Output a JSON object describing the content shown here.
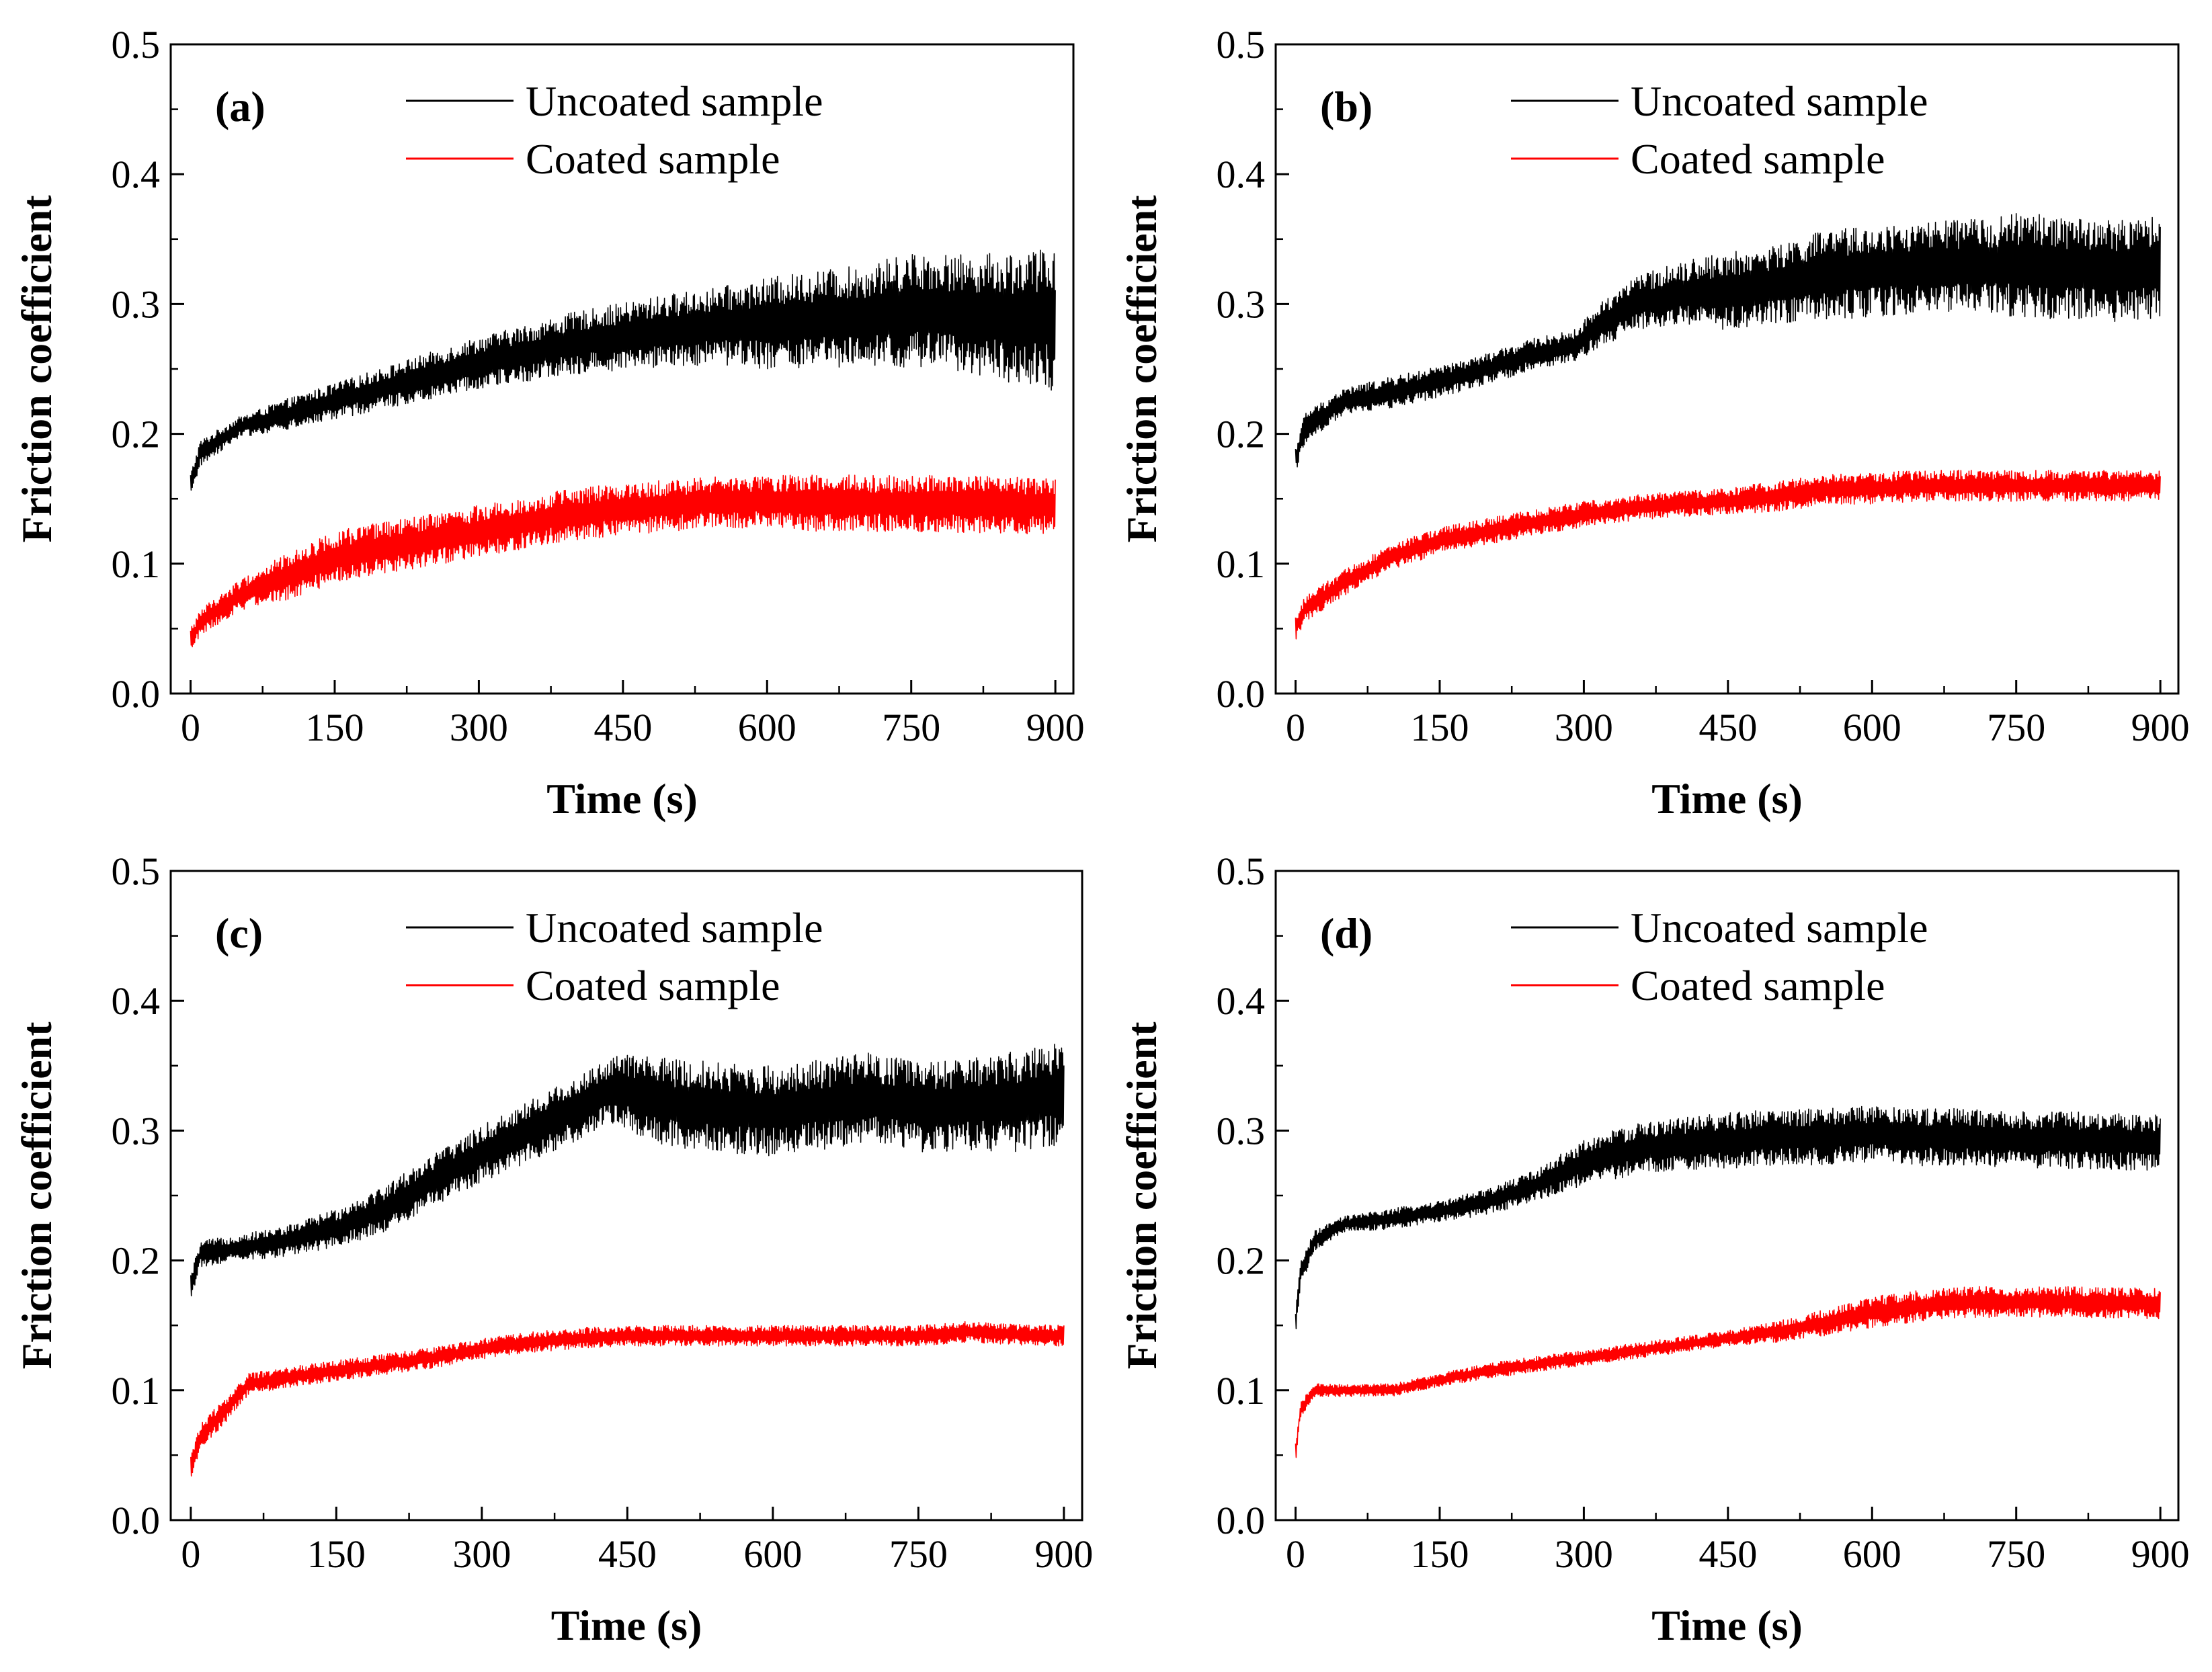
{
  "colors": {
    "uncoated": "#000000",
    "coated": "#ff0000",
    "frame": "#000000"
  },
  "chart_data": [
    {
      "panel": "(a)",
      "type": "line",
      "xlabel": "Time (s)",
      "ylabel": "Friction coefficient",
      "xlim": [
        0,
        900
      ],
      "ylim": [
        0.0,
        0.5
      ],
      "xticks": [
        "0",
        "150",
        "300",
        "450",
        "600",
        "750",
        "900"
      ],
      "yticks": [
        "0.0",
        "0.1",
        "0.2",
        "0.3",
        "0.4",
        "0.5"
      ],
      "legend": [
        "Uncoated sample",
        "Coated sample"
      ],
      "series": [
        {
          "name": "Uncoated sample",
          "color": "#000000",
          "x": [
            0,
            10,
            50,
            100,
            150,
            200,
            250,
            300,
            350,
            400,
            450,
            500,
            550,
            600,
            650,
            700,
            750,
            800,
            850,
            900
          ],
          "y": [
            0.16,
            0.185,
            0.205,
            0.215,
            0.225,
            0.235,
            0.245,
            0.255,
            0.262,
            0.27,
            0.275,
            0.28,
            0.283,
            0.285,
            0.288,
            0.29,
            0.295,
            0.293,
            0.29,
            0.288
          ],
          "amp": [
            0.01,
            0.01,
            0.008,
            0.012,
            0.014,
            0.016,
            0.018,
            0.02,
            0.022,
            0.024,
            0.026,
            0.028,
            0.03,
            0.035,
            0.038,
            0.04,
            0.045,
            0.045,
            0.05,
            0.055
          ]
        },
        {
          "name": "Coated sample",
          "color": "#ff0000",
          "x": [
            0,
            10,
            50,
            100,
            150,
            200,
            250,
            300,
            350,
            400,
            450,
            500,
            550,
            600,
            650,
            700,
            750,
            800,
            850,
            900
          ],
          "y": [
            0.04,
            0.055,
            0.075,
            0.09,
            0.105,
            0.112,
            0.118,
            0.125,
            0.132,
            0.138,
            0.142,
            0.145,
            0.147,
            0.148,
            0.147,
            0.147,
            0.146,
            0.146,
            0.145,
            0.145
          ],
          "amp": [
            0.01,
            0.01,
            0.012,
            0.018,
            0.02,
            0.02,
            0.02,
            0.02,
            0.02,
            0.02,
            0.02,
            0.02,
            0.02,
            0.02,
            0.022,
            0.022,
            0.022,
            0.022,
            0.022,
            0.022
          ]
        }
      ]
    },
    {
      "panel": "(b)",
      "type": "line",
      "xlabel": "Time (s)",
      "ylabel": "Friction coefficient",
      "xlim": [
        0,
        900
      ],
      "ylim": [
        0.0,
        0.5
      ],
      "xticks": [
        "0",
        "150",
        "300",
        "450",
        "600",
        "750",
        "900"
      ],
      "yticks": [
        "0.0",
        "0.1",
        "0.2",
        "0.3",
        "0.4",
        "0.5"
      ],
      "legend": [
        "Uncoated sample",
        "Coated sample"
      ],
      "series": [
        {
          "name": "Uncoated sample",
          "color": "#000000",
          "x": [
            0,
            10,
            50,
            100,
            150,
            200,
            250,
            290,
            320,
            350,
            400,
            450,
            500,
            550,
            600,
            650,
            700,
            750,
            800,
            850,
            900
          ],
          "y": [
            0.18,
            0.205,
            0.225,
            0.232,
            0.24,
            0.25,
            0.262,
            0.268,
            0.285,
            0.3,
            0.308,
            0.31,
            0.315,
            0.322,
            0.325,
            0.328,
            0.33,
            0.33,
            0.328,
            0.325,
            0.328
          ],
          "amp": [
            0.01,
            0.012,
            0.01,
            0.012,
            0.012,
            0.012,
            0.012,
            0.012,
            0.018,
            0.02,
            0.025,
            0.03,
            0.03,
            0.035,
            0.035,
            0.035,
            0.035,
            0.04,
            0.04,
            0.04,
            0.04
          ]
        },
        {
          "name": "Coated sample",
          "color": "#ff0000",
          "x": [
            0,
            10,
            50,
            100,
            150,
            200,
            250,
            300,
            350,
            400,
            450,
            500,
            550,
            600,
            650,
            700,
            750,
            800,
            850,
            900
          ],
          "y": [
            0.05,
            0.065,
            0.085,
            0.105,
            0.118,
            0.125,
            0.132,
            0.138,
            0.143,
            0.146,
            0.148,
            0.152,
            0.157,
            0.158,
            0.16,
            0.16,
            0.16,
            0.16,
            0.16,
            0.16
          ],
          "amp": [
            0.01,
            0.01,
            0.01,
            0.01,
            0.01,
            0.01,
            0.01,
            0.01,
            0.01,
            0.01,
            0.01,
            0.012,
            0.012,
            0.012,
            0.012,
            0.012,
            0.012,
            0.012,
            0.012,
            0.012
          ]
        }
      ]
    },
    {
      "panel": "(c)",
      "type": "line",
      "xlabel": "Time (s)",
      "ylabel": "Friction coefficient",
      "xlim": [
        0,
        900
      ],
      "ylim": [
        0.0,
        0.5
      ],
      "xticks": [
        "0",
        "150",
        "300",
        "450",
        "600",
        "750",
        "900"
      ],
      "yticks": [
        "0.0",
        "0.1",
        "0.2",
        "0.3",
        "0.4",
        "0.5"
      ],
      "legend": [
        "Uncoated sample",
        "Coated sample"
      ],
      "series": [
        {
          "name": "Uncoated sample",
          "color": "#000000",
          "x": [
            0,
            10,
            50,
            100,
            150,
            200,
            250,
            300,
            350,
            400,
            430,
            450,
            500,
            550,
            600,
            650,
            700,
            750,
            800,
            850,
            900
          ],
          "y": [
            0.18,
            0.205,
            0.21,
            0.215,
            0.225,
            0.24,
            0.262,
            0.282,
            0.3,
            0.318,
            0.33,
            0.33,
            0.32,
            0.318,
            0.315,
            0.32,
            0.325,
            0.318,
            0.32,
            0.322,
            0.33
          ],
          "amp": [
            0.01,
            0.01,
            0.01,
            0.012,
            0.015,
            0.018,
            0.02,
            0.022,
            0.024,
            0.025,
            0.025,
            0.03,
            0.035,
            0.035,
            0.035,
            0.035,
            0.035,
            0.035,
            0.035,
            0.04,
            0.04
          ]
        },
        {
          "name": "Coated sample",
          "color": "#ff0000",
          "x": [
            0,
            10,
            30,
            60,
            100,
            150,
            200,
            250,
            300,
            350,
            400,
            450,
            500,
            550,
            600,
            650,
            700,
            750,
            800,
            850,
            900
          ],
          "y": [
            0.04,
            0.065,
            0.08,
            0.105,
            0.11,
            0.115,
            0.12,
            0.125,
            0.132,
            0.137,
            0.14,
            0.142,
            0.142,
            0.142,
            0.142,
            0.142,
            0.142,
            0.142,
            0.145,
            0.143,
            0.142
          ],
          "amp": [
            0.01,
            0.01,
            0.01,
            0.008,
            0.008,
            0.008,
            0.008,
            0.008,
            0.008,
            0.008,
            0.008,
            0.008,
            0.008,
            0.008,
            0.008,
            0.008,
            0.008,
            0.008,
            0.008,
            0.008,
            0.008
          ]
        }
      ]
    },
    {
      "panel": "(d)",
      "type": "line",
      "xlabel": "Time (s)",
      "ylabel": "Friction coefficient",
      "xlim": [
        0,
        900
      ],
      "ylim": [
        0.0,
        0.5
      ],
      "xticks": [
        "0",
        "150",
        "300",
        "450",
        "600",
        "750",
        "900"
      ],
      "yticks": [
        "0.0",
        "0.1",
        "0.2",
        "0.3",
        "0.4",
        "0.5"
      ],
      "legend": [
        "Uncoated sample",
        "Coated sample"
      ],
      "series": [
        {
          "name": "Uncoated sample",
          "color": "#000000",
          "x": [
            0,
            5,
            20,
            50,
            100,
            150,
            200,
            250,
            300,
            350,
            400,
            450,
            500,
            550,
            600,
            650,
            700,
            750,
            800,
            850,
            900
          ],
          "y": [
            0.15,
            0.19,
            0.215,
            0.228,
            0.232,
            0.238,
            0.245,
            0.258,
            0.275,
            0.285,
            0.29,
            0.292,
            0.295,
            0.295,
            0.298,
            0.295,
            0.295,
            0.293,
            0.293,
            0.292,
            0.29
          ],
          "amp": [
            0.01,
            0.01,
            0.008,
            0.006,
            0.008,
            0.008,
            0.01,
            0.012,
            0.018,
            0.02,
            0.02,
            0.022,
            0.022,
            0.022,
            0.022,
            0.022,
            0.022,
            0.022,
            0.022,
            0.022,
            0.022
          ]
        },
        {
          "name": "Coated sample",
          "color": "#ff0000",
          "x": [
            0,
            5,
            20,
            50,
            100,
            150,
            200,
            250,
            300,
            350,
            400,
            450,
            500,
            550,
            600,
            650,
            700,
            750,
            800,
            850,
            900
          ],
          "y": [
            0.05,
            0.085,
            0.1,
            0.1,
            0.1,
            0.108,
            0.115,
            0.12,
            0.125,
            0.13,
            0.135,
            0.14,
            0.145,
            0.152,
            0.16,
            0.165,
            0.168,
            0.168,
            0.168,
            0.167,
            0.167
          ],
          "amp": [
            0.01,
            0.006,
            0.005,
            0.005,
            0.005,
            0.005,
            0.006,
            0.006,
            0.006,
            0.006,
            0.006,
            0.006,
            0.008,
            0.01,
            0.012,
            0.012,
            0.012,
            0.012,
            0.012,
            0.012,
            0.012
          ]
        }
      ]
    }
  ]
}
